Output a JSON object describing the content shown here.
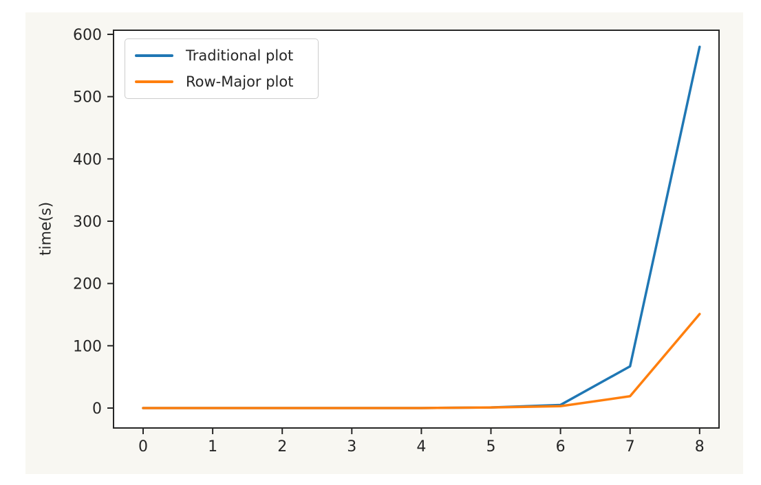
{
  "figure": {
    "page_background": "#ffffff",
    "figure_background": "#f8f7f2",
    "axes_background": "#ffffff",
    "axis_color": "#262626"
  },
  "chart_data": {
    "type": "line",
    "title": "",
    "xlabel": "",
    "ylabel": "time(s)",
    "x": [
      0,
      1,
      2,
      3,
      4,
      5,
      6,
      7,
      8
    ],
    "x_ticks": [
      0,
      1,
      2,
      3,
      4,
      5,
      6,
      7,
      8
    ],
    "y_ticks": [
      0,
      100,
      200,
      300,
      400,
      500,
      600
    ],
    "xlim": [
      -0.43,
      8.28
    ],
    "ylim": [
      -32,
      607
    ],
    "grid": false,
    "legend_position": "upper left",
    "series": [
      {
        "name": "Traditional plot",
        "color": "#1f77b4",
        "values": [
          0,
          0,
          0,
          0,
          0,
          1,
          5,
          67,
          580
        ]
      },
      {
        "name": "Row-Major plot",
        "color": "#ff7f0e",
        "values": [
          0,
          0,
          0,
          0,
          0,
          1,
          3,
          19,
          151
        ]
      }
    ]
  }
}
